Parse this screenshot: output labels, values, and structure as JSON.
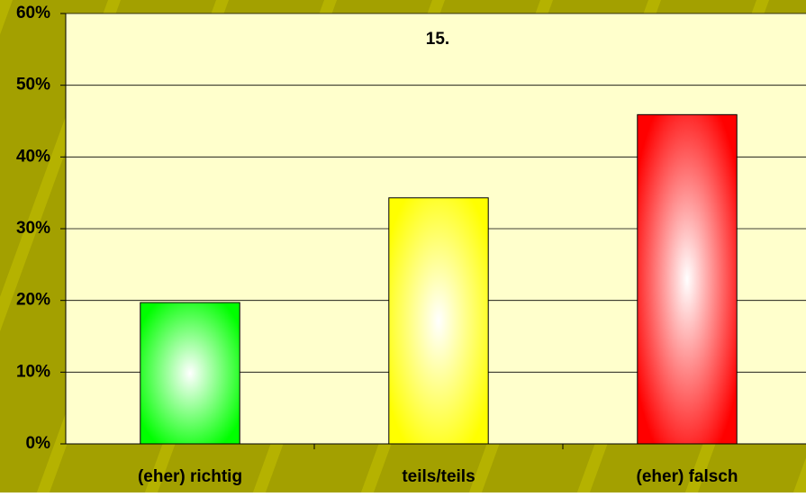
{
  "chart_data": {
    "type": "bar",
    "title": "15.",
    "categories": [
      "(eher) richtig",
      "teils/teils",
      "(eher) falsch"
    ],
    "values": [
      19.7,
      34.3,
      45.9
    ],
    "colors": [
      "#00ff00",
      "#ffff00",
      "#ff0000"
    ],
    "ylim": [
      0,
      60
    ],
    "yticks": [
      {
        "value": 0,
        "label": "0%"
      },
      {
        "value": 10,
        "label": "10%"
      },
      {
        "value": 20,
        "label": "20%"
      },
      {
        "value": 30,
        "label": "30%"
      },
      {
        "value": 40,
        "label": "40%"
      },
      {
        "value": 50,
        "label": "50%"
      },
      {
        "value": 60,
        "label": "60%"
      }
    ],
    "grid": true
  }
}
